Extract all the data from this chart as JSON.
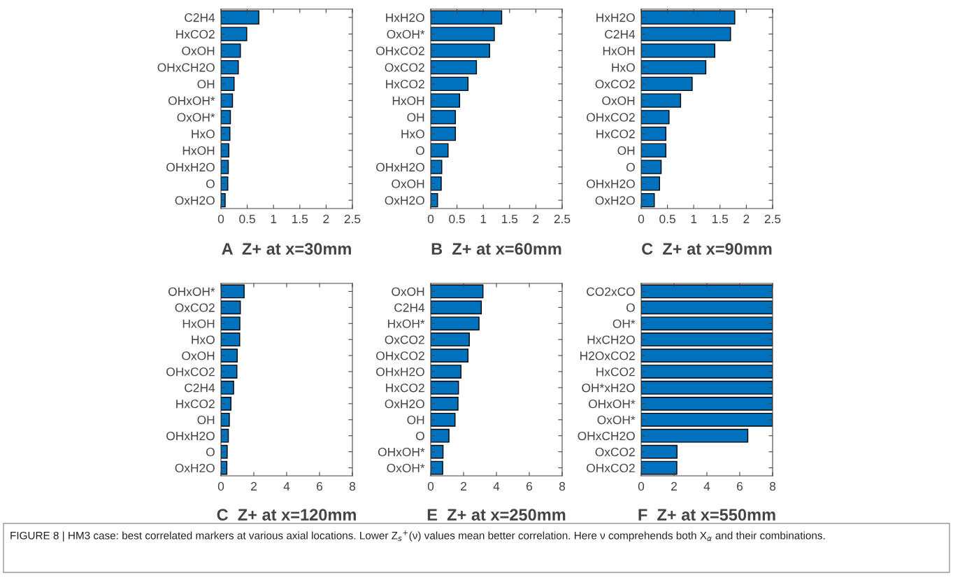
{
  "chart_data": [
    {
      "type": "bar",
      "orientation": "horizontal",
      "title": "A  Z+ at x=30mm",
      "categories": [
        "C2H4",
        "HxCO2",
        "OxOH",
        "OHxCH2O",
        "OH",
        "OHxOH*",
        "OxOH*",
        "HxO",
        "HxOH",
        "OHxH2O",
        "O",
        "OxH2O"
      ],
      "values": [
        0.72,
        0.49,
        0.37,
        0.33,
        0.25,
        0.22,
        0.18,
        0.17,
        0.15,
        0.14,
        0.13,
        0.08
      ],
      "color": "#0072bd",
      "xlim": [
        0,
        2.5
      ],
      "xticks": [
        0,
        0.5,
        1,
        1.5,
        2,
        2.5
      ],
      "grid": false,
      "annotations": [
        "FIGURE 8 | HM3 case: best correlated markers at various axial locations. Lower Z$_{s}$$^{+}$(ν) values mean better correlation. Here ν comprehends both X$_{α}$ and their combinations."
      ]
    },
    {
      "type": "bar",
      "orientation": "horizontal",
      "title": "B  Z+ at x=60mm",
      "categories": [
        "HxH2O",
        "OxOH*",
        "OHxCO2",
        "OxCO2",
        "HxCO2",
        "HxOH",
        "OH",
        "HxO",
        "O",
        "OHxH2O",
        "OxOH",
        "OxH2O"
      ],
      "values": [
        1.35,
        1.21,
        1.12,
        0.87,
        0.71,
        0.55,
        0.47,
        0.47,
        0.33,
        0.21,
        0.2,
        0.13
      ],
      "color": "#0072bd",
      "xlim": [
        0,
        2.5
      ],
      "xticks": [
        0,
        0.5,
        1,
        1.5,
        2,
        2.5
      ],
      "grid": false
    },
    {
      "type": "bar",
      "orientation": "horizontal",
      "title": "C  Z+ at x=90mm",
      "categories": [
        "HxH2O",
        "C2H4",
        "HxOH",
        "HxO",
        "OxCO2",
        "OxOH",
        "OHxCO2",
        "HxCO2",
        "OH",
        "O",
        "OHxH2O",
        "OxH2O"
      ],
      "values": [
        1.78,
        1.7,
        1.4,
        1.23,
        0.97,
        0.75,
        0.53,
        0.47,
        0.47,
        0.38,
        0.35,
        0.25
      ],
      "color": "#0072bd",
      "xlim": [
        0,
        2.5
      ],
      "xticks": [
        0,
        0.5,
        1,
        1.5,
        2,
        2.5
      ],
      "grid": false
    },
    {
      "type": "bar",
      "orientation": "horizontal",
      "title": "C  Z+ at x=120mm",
      "categories": [
        "OHxOH*",
        "OxCO2",
        "HxOH",
        "HxO",
        "OxOH",
        "OHxCO2",
        "C2H4",
        "HxCO2",
        "OH",
        "OHxH2O",
        "O",
        "OxH2O"
      ],
      "values": [
        1.41,
        1.18,
        1.15,
        1.14,
        0.99,
        0.97,
        0.77,
        0.61,
        0.51,
        0.45,
        0.38,
        0.36
      ],
      "color": "#0072bd",
      "xlim": [
        0,
        8
      ],
      "xticks": [
        0,
        2,
        4,
        6,
        8
      ],
      "grid": false
    },
    {
      "type": "bar",
      "orientation": "horizontal",
      "title": "E  Z+ at x=250mm",
      "categories": [
        "OxOH",
        "C2H4",
        "HxOH*",
        "OxCO2",
        "OHxCO2",
        "OHxH2O",
        "HxCO2",
        "OxH2O",
        "OH",
        "O",
        "OHxOH*",
        "OxOH*"
      ],
      "values": [
        3.18,
        3.08,
        2.94,
        2.35,
        2.27,
        1.84,
        1.69,
        1.66,
        1.48,
        1.11,
        0.75,
        0.73
      ],
      "color": "#0072bd",
      "xlim": [
        0,
        8
      ],
      "xticks": [
        0,
        2,
        4,
        6,
        8
      ],
      "grid": false
    },
    {
      "type": "bar",
      "orientation": "horizontal",
      "title": "F  Z+ at x=550mm",
      "categories": [
        "CO2xCO",
        "O",
        "OH*",
        "HxCH2O",
        "H2OxCO2",
        "HxCO2",
        "OH*xH2O",
        "OHxOH*",
        "OxOH*",
        "OHxCH2O",
        "OxCO2",
        "OHxCO2"
      ],
      "values": [
        8,
        8,
        8,
        8,
        8,
        8,
        8,
        8,
        8,
        6.49,
        2.18,
        2.17
      ],
      "color": "#0072bd",
      "xlim": [
        0,
        8
      ],
      "xticks": [
        0,
        2,
        4,
        6,
        8
      ],
      "grid": false
    }
  ]
}
